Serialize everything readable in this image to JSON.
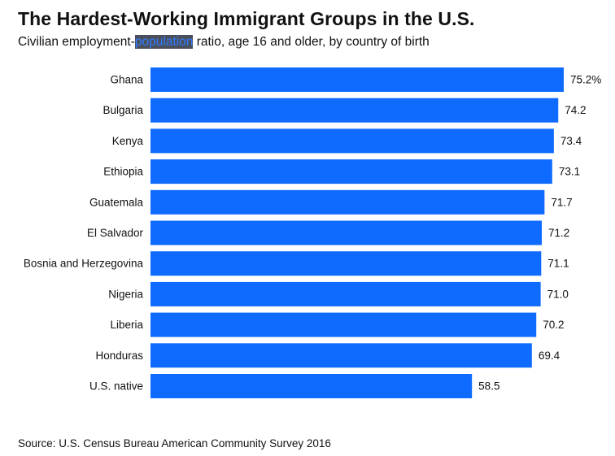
{
  "title_main": "The Hardest-Working Immigrant Groups in the U.S.",
  "subtitle_before": "Civilian employment-",
  "subtitle_selected": "population",
  "subtitle_after": " ratio, age 16 and older, by country of birth",
  "source": "Source: U.S. Census Bureau American Community Survey 2016",
  "colors": {
    "bar": "#0f6bff",
    "selection_bg": "#4a4f5c",
    "selection_text": "#2f7bff"
  },
  "chart_data": {
    "type": "bar",
    "orientation": "horizontal",
    "categories": [
      "Ghana",
      "Bulgaria",
      "Kenya",
      "Ethiopia",
      "Guatemala",
      "El Salvador",
      "Bosnia and Herzegovina",
      "Nigeria",
      "Liberia",
      "Honduras",
      "U.S. native"
    ],
    "values": [
      75.2,
      74.2,
      73.4,
      73.1,
      71.7,
      71.2,
      71.1,
      71.0,
      70.2,
      69.4,
      58.5
    ],
    "value_labels": [
      "75.2%",
      "74.2",
      "73.4",
      "73.1",
      "71.7",
      "71.2",
      "71.1",
      "71.0",
      "70.2",
      "69.4",
      "58.5"
    ],
    "xlim": [
      0,
      75.2
    ],
    "xlabel": "",
    "ylabel": "",
    "grid": false,
    "legend": "none"
  }
}
